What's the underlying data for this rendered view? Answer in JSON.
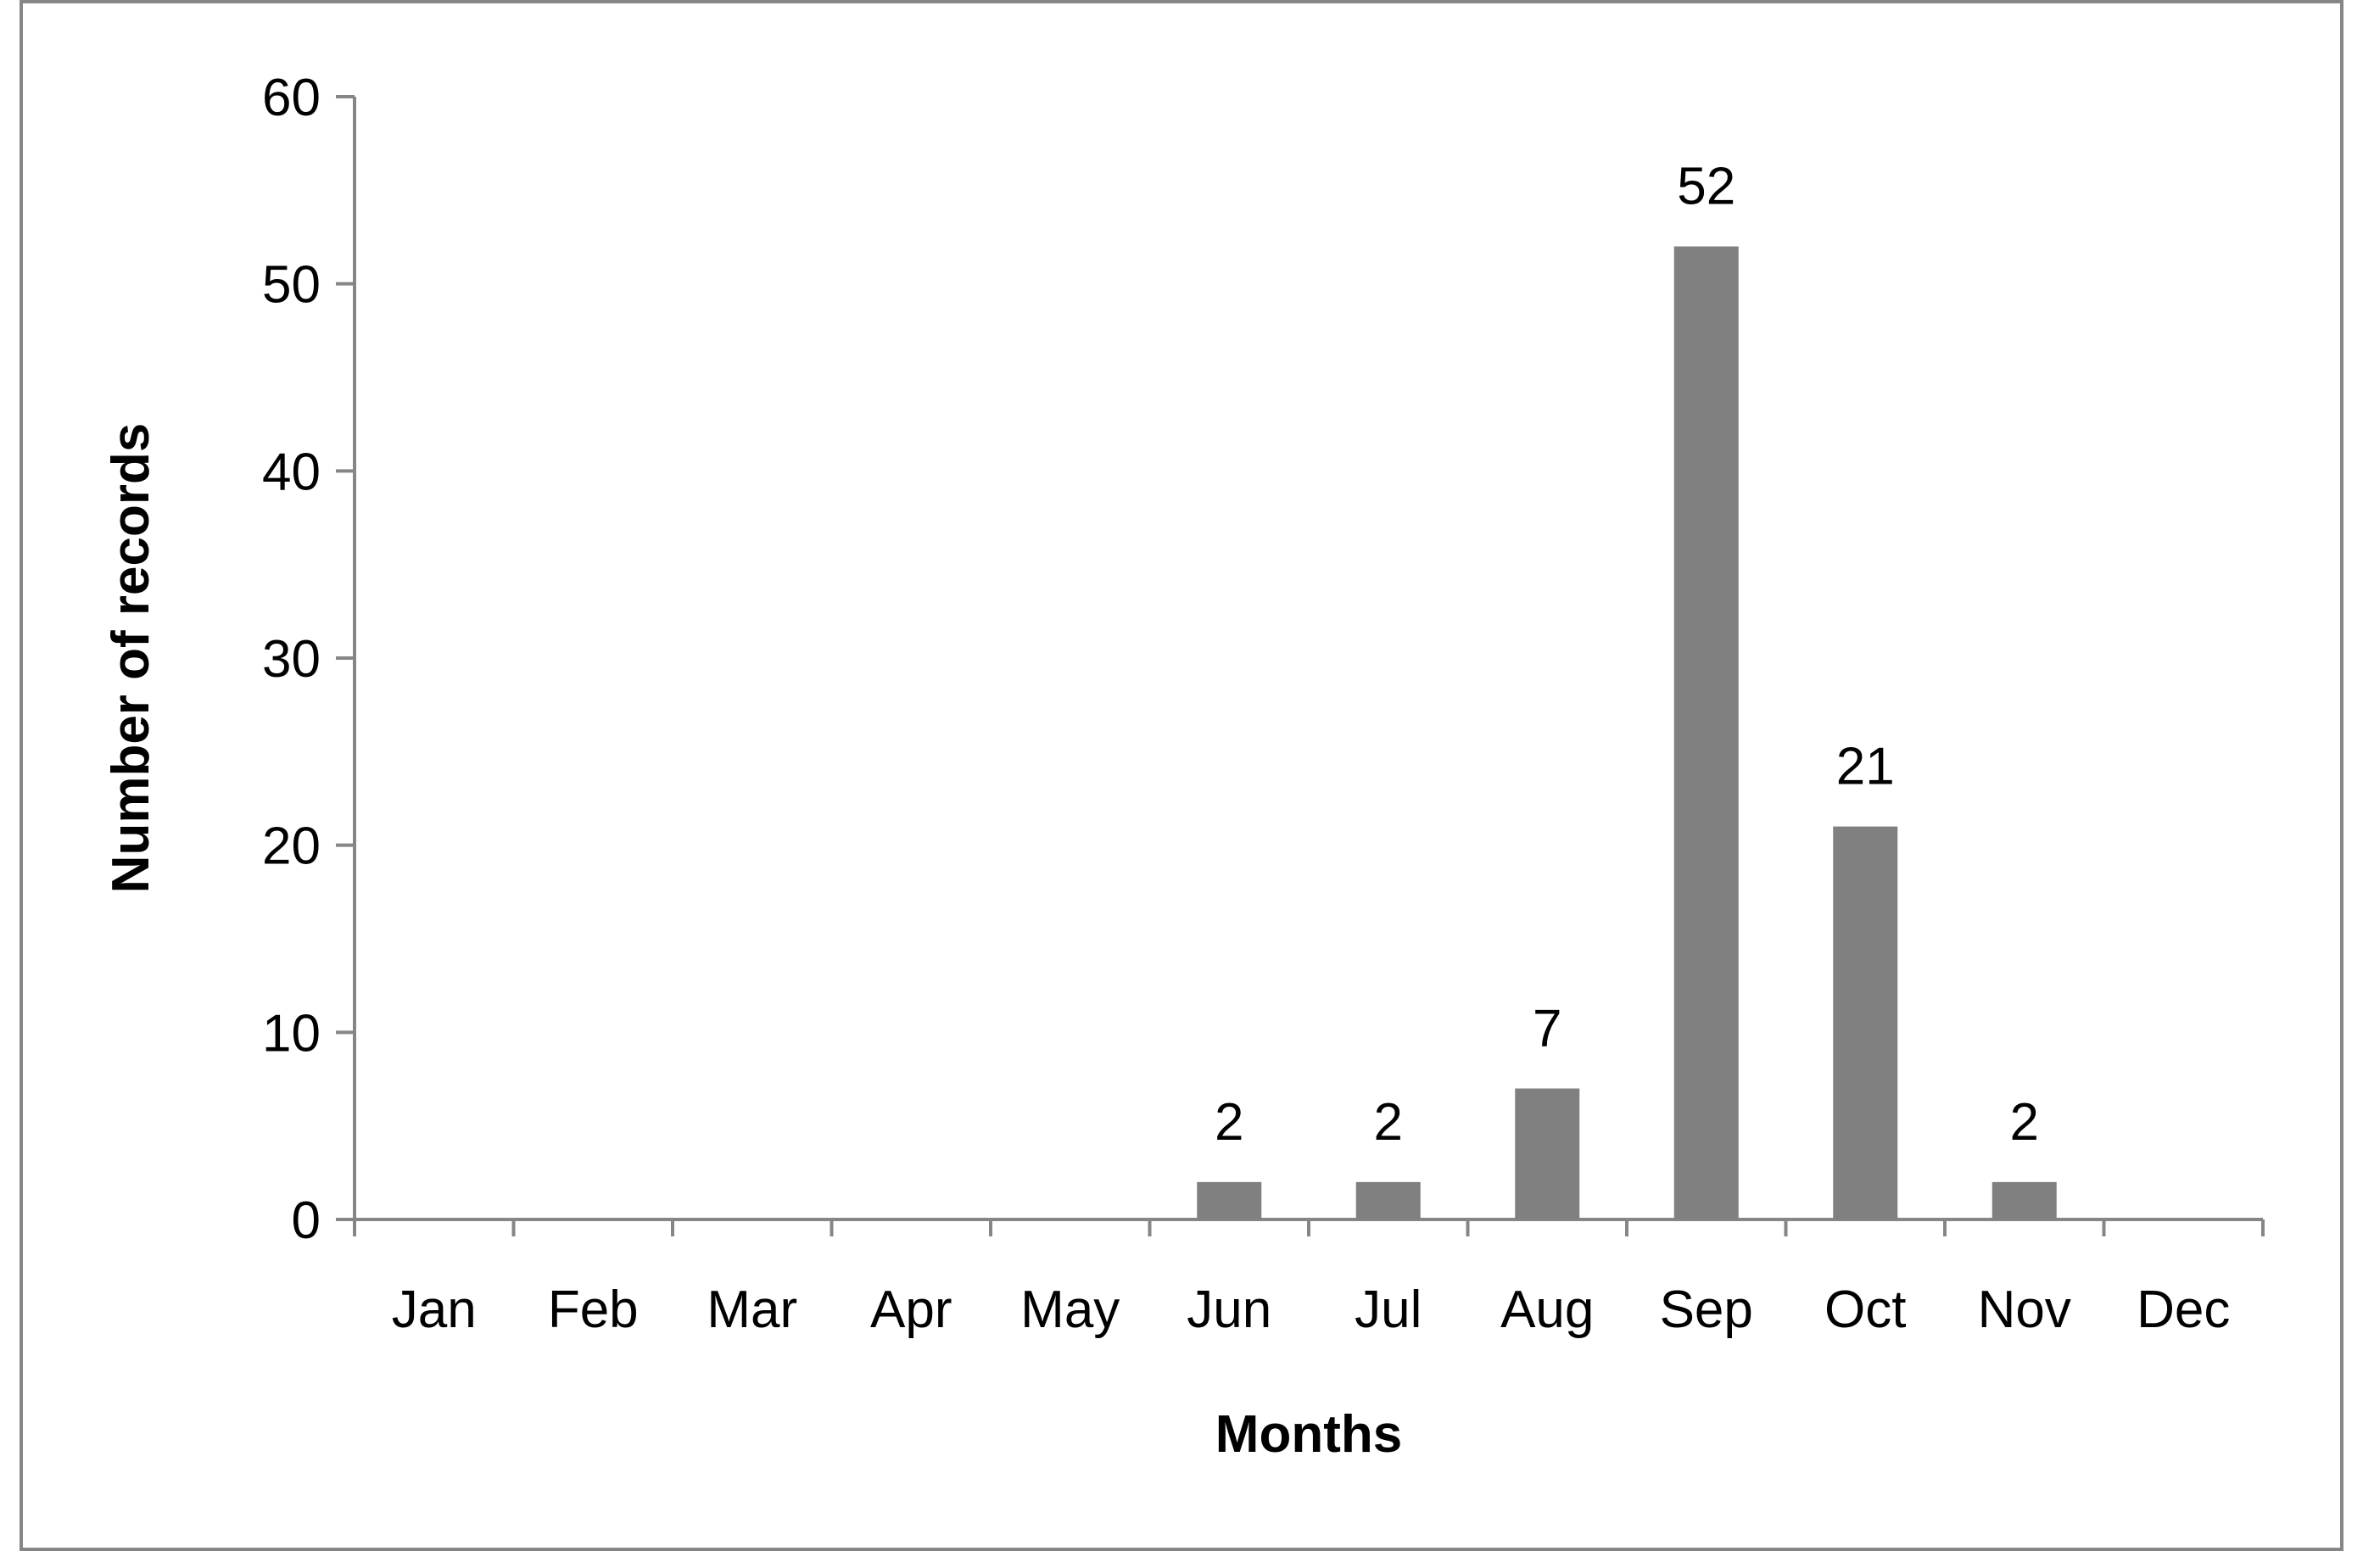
{
  "chart_data": {
    "type": "bar",
    "title": "",
    "xlabel": "Months",
    "ylabel": "Number of records",
    "categories": [
      "Jan",
      "Feb",
      "Mar",
      "Apr",
      "May",
      "Jun",
      "Jul",
      "Aug",
      "Sep",
      "Oct",
      "Nov",
      "Dec"
    ],
    "values": [
      0,
      0,
      0,
      0,
      0,
      2,
      2,
      7,
      52,
      21,
      2,
      0
    ],
    "data_labels": [
      "",
      "",
      "",
      "",
      "",
      "2",
      "2",
      "7",
      "52",
      "21",
      "2",
      ""
    ],
    "ylim": [
      0,
      60
    ],
    "yticks": [
      0,
      10,
      20,
      30,
      40,
      50,
      60
    ],
    "grid": false,
    "legend": "none",
    "colors": {
      "bar": "#808080",
      "axis": "#868686",
      "frame": "#868686",
      "text": "#000000"
    }
  }
}
